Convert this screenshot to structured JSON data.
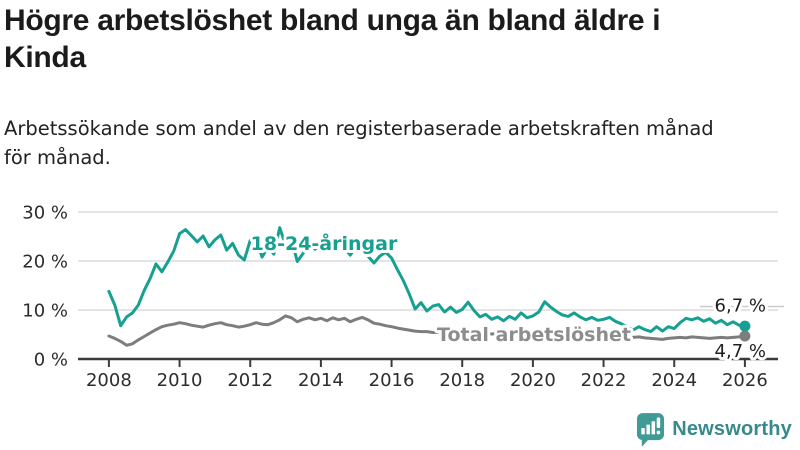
{
  "header": {
    "title_lines": [
      "Högre arbetslöshet bland unga än bland äldre i",
      "Kinda"
    ],
    "subtitle_lines": [
      "Arbetssökande som andel av den registerbaserade arbetskraften månad",
      "för månad."
    ]
  },
  "footer": {
    "brand": "Newsworthy",
    "logo_icon": "newsworthy-speech-bubble-bar-chart-icon"
  },
  "colors": {
    "young_line": "#16a091",
    "total_line": "#7d7d7d",
    "total_label": "#8d8d8d",
    "grid": "#dcdcdc",
    "axis": "#3b3b3b",
    "leader": "#cbcbcb",
    "value_text": "#1f1f1f",
    "axis_text": "#2d2d2d",
    "brand_teal": "#3f9b94"
  },
  "chart_data": {
    "type": "line",
    "title": "Högre arbetslöshet bland unga än bland äldre i Kinda",
    "subtitle": "Arbetssökande som andel av den registerbaserade arbetskraften månad för månad.",
    "unit": "%",
    "x_start": 2008,
    "x_end": 2026,
    "x_step_years": 0.166667,
    "x_ticks": [
      2008,
      2010,
      2012,
      2014,
      2016,
      2018,
      2020,
      2022,
      2024,
      2026
    ],
    "ylim": [
      0,
      30
    ],
    "grid": "horizontal",
    "legend_position": "inline-labels",
    "y_ticks": [
      {
        "value": 30,
        "label": "30 %"
      },
      {
        "value": 20,
        "label": "20 %"
      },
      {
        "value": 10,
        "label": "10 %"
      },
      {
        "value": 0,
        "label": "0 %"
      }
    ],
    "series": [
      {
        "id": "young",
        "name": "18-24-åringar",
        "color": "#16a091",
        "end_label": "6,7 %",
        "end_value": 6.7,
        "values": [
          13.8,
          11.0,
          6.8,
          8.6,
          9.4,
          11.0,
          14.0,
          16.4,
          19.4,
          17.8,
          19.8,
          22.0,
          25.6,
          26.4,
          25.2,
          23.9,
          25.1,
          22.9,
          24.3,
          25.3,
          22.2,
          23.6,
          21.2,
          20.2,
          24.2,
          24.6,
          20.8,
          22.8,
          21.4,
          26.8,
          23.2,
          24.4,
          19.9,
          21.6,
          23.8,
          22.4,
          23.4,
          24.4,
          23.0,
          24.2,
          22.6,
          21.2,
          23.0,
          23.8,
          21.0,
          19.6,
          21.0,
          21.8,
          20.6,
          18.2,
          16.0,
          13.3,
          10.2,
          11.5,
          9.8,
          10.8,
          11.1,
          9.6,
          10.6,
          9.5,
          10.1,
          11.6,
          9.9,
          8.6,
          9.1,
          8.1,
          8.6,
          7.8,
          8.7,
          8.1,
          9.4,
          8.4,
          8.8,
          9.6,
          11.7,
          10.6,
          9.7,
          9.0,
          8.7,
          9.4,
          8.6,
          8.0,
          8.5,
          7.9,
          8.1,
          8.5,
          7.7,
          7.2,
          6.6,
          5.9,
          6.6,
          6.0,
          5.6,
          6.6,
          5.7,
          6.6,
          6.2,
          7.4,
          8.3,
          8.0,
          8.4,
          7.7,
          8.2,
          7.3,
          7.9,
          7.0,
          7.6,
          6.9,
          6.7
        ]
      },
      {
        "id": "total",
        "name": "Total arbetslöshet",
        "color": "#7d7d7d",
        "end_label": "4,7 %",
        "end_value": 4.7,
        "values": [
          4.7,
          4.2,
          3.6,
          2.8,
          3.1,
          3.9,
          4.6,
          5.3,
          6.0,
          6.6,
          6.9,
          7.1,
          7.4,
          7.2,
          6.9,
          6.7,
          6.5,
          6.9,
          7.2,
          7.4,
          7.0,
          6.8,
          6.5,
          6.7,
          7.0,
          7.4,
          7.1,
          7.0,
          7.4,
          8.0,
          8.8,
          8.4,
          7.6,
          8.1,
          8.4,
          8.0,
          8.3,
          7.8,
          8.4,
          8.0,
          8.3,
          7.6,
          8.1,
          8.5,
          8.0,
          7.3,
          7.1,
          6.8,
          6.6,
          6.3,
          6.1,
          5.9,
          5.7,
          5.6,
          5.6,
          5.4,
          5.5,
          5.3,
          5.5,
          5.3,
          5.5,
          5.3,
          5.2,
          5.4,
          5.2,
          5.1,
          5.2,
          5.0,
          5.1,
          4.9,
          5.1,
          5.0,
          5.2,
          5.5,
          5.9,
          5.7,
          5.5,
          5.4,
          5.5,
          5.3,
          5.1,
          5.0,
          4.9,
          4.8,
          4.8,
          4.7,
          4.6,
          4.5,
          4.4,
          4.4,
          4.5,
          4.3,
          4.2,
          4.1,
          4.0,
          4.2,
          4.3,
          4.4,
          4.3,
          4.5,
          4.4,
          4.3,
          4.2,
          4.3,
          4.4,
          4.3,
          4.4,
          4.5,
          4.7
        ]
      }
    ]
  }
}
